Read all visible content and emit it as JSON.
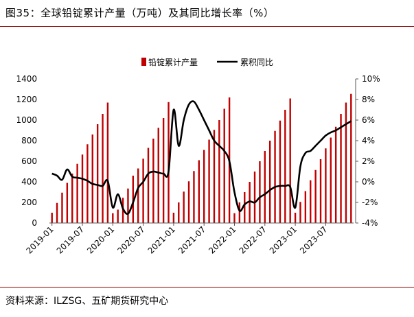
{
  "header": {
    "title": "图35：全球铅锭累计产量（万吨）及其同比增长率（%）"
  },
  "footer": {
    "source": "资料来源：ILZSG、五矿期货研究中心"
  },
  "colors": {
    "bar": "#c00000",
    "line": "#000000",
    "rule": "#8b0000"
  },
  "chart_data": {
    "type": "bar+line",
    "legend": {
      "position": "top",
      "bar_label": "铅锭累计产量",
      "line_label": "累积同比"
    },
    "y_left": {
      "min": 0,
      "max": 1400,
      "ticks": [
        "0",
        "200",
        "400",
        "600",
        "800",
        "1000",
        "1200",
        "1400"
      ]
    },
    "y_right": {
      "min": -4,
      "max": 10,
      "ticks": [
        "-4%",
        "-2%",
        "0%",
        "2%",
        "4%",
        "6%",
        "8%",
        "10%"
      ]
    },
    "x_labels": [
      {
        "i": 0,
        "label": "2019-01"
      },
      {
        "i": 6,
        "label": "2019-07"
      },
      {
        "i": 12,
        "label": "2020-01"
      },
      {
        "i": 18,
        "label": "2020-07"
      },
      {
        "i": 24,
        "label": "2021-01"
      },
      {
        "i": 30,
        "label": "2021-07"
      },
      {
        "i": 36,
        "label": "2022-01"
      },
      {
        "i": 42,
        "label": "2022-07"
      },
      {
        "i": 48,
        "label": "2023-01"
      },
      {
        "i": 54,
        "label": "2023-07"
      }
    ],
    "series": [
      {
        "name": "铅锭累计产量",
        "kind": "bar",
        "values": [
          100,
          195,
          295,
          390,
          480,
          575,
          665,
          765,
          860,
          960,
          1060,
          1170,
          95,
          130,
          245,
          335,
          460,
          530,
          625,
          730,
          820,
          925,
          1020,
          1175,
          100,
          200,
          305,
          405,
          505,
          610,
          710,
          810,
          905,
          1000,
          1110,
          1220,
          95,
          200,
          300,
          400,
          500,
          600,
          700,
          800,
          895,
          995,
          1100,
          1210,
          100,
          205,
          310,
          415,
          515,
          620,
          725,
          830,
          935,
          1060,
          1170,
          1255
        ]
      },
      {
        "name": "累积同比",
        "kind": "line",
        "values": [
          0.8,
          0.6,
          0.2,
          1.2,
          0.5,
          0.4,
          0.3,
          0.1,
          -0.2,
          -0.3,
          -0.4,
          0.1,
          -2.5,
          -1.2,
          -2.6,
          -3.1,
          -2.0,
          -0.6,
          0.0,
          0.8,
          1.0,
          0.9,
          0.8,
          1.0,
          7.0,
          3.5,
          6.0,
          7.5,
          7.8,
          7.0,
          6.0,
          5.0,
          4.0,
          3.5,
          3.0,
          2.0,
          -1.0,
          -2.8,
          -2.2,
          -1.9,
          -2.0,
          -1.5,
          -1.2,
          -0.8,
          -0.5,
          -0.4,
          -0.4,
          -0.5,
          -2.5,
          1.5,
          2.8,
          3.0,
          3.5,
          4.0,
          4.5,
          4.8,
          5.0,
          5.3,
          5.6,
          5.9
        ]
      }
    ]
  }
}
